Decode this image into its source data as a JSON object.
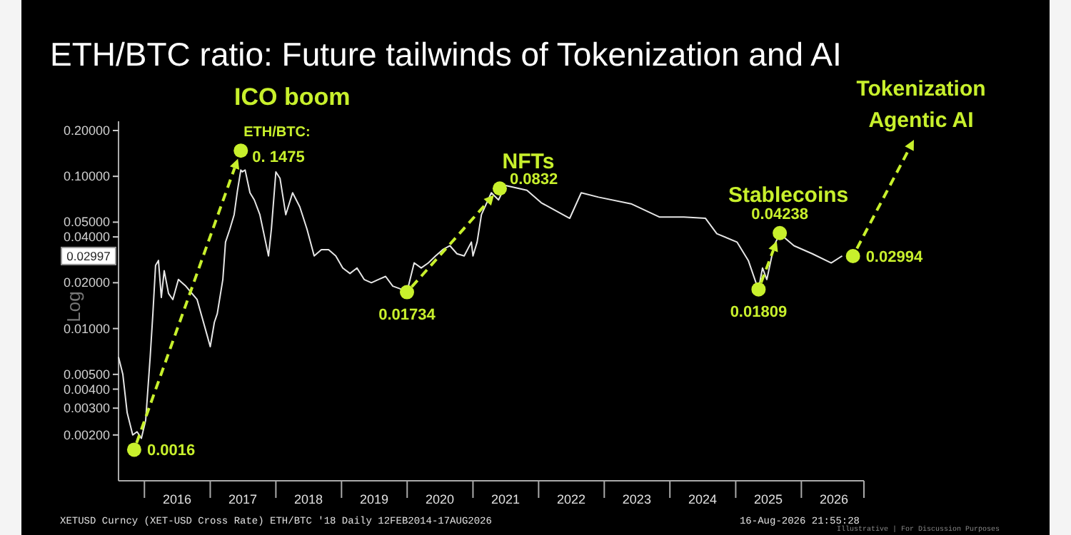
{
  "chart_data": {
    "type": "line",
    "title": "ETH/BTC ratio: Future tailwinds of Tokenization and AI",
    "ylabel": "Log",
    "log": true,
    "xlim": [
      "2015-08-10",
      "2026-12-15"
    ],
    "xticks": [
      {
        "value": "2016-01-01",
        "label": null
      },
      {
        "value": "2016-07-01",
        "label": "2016"
      },
      {
        "value": "2017-01-01",
        "label": null
      },
      {
        "value": "2017-07-01",
        "label": "2017"
      },
      {
        "value": "2018-01-01",
        "label": null
      },
      {
        "value": "2018-07-01",
        "label": "2018"
      },
      {
        "value": "2019-01-01",
        "label": null
      },
      {
        "value": "2019-07-01",
        "label": "2019"
      },
      {
        "value": "2020-01-01",
        "label": null
      },
      {
        "value": "2020-07-01",
        "label": "2020"
      },
      {
        "value": "2021-01-01",
        "label": null
      },
      {
        "value": "2021-07-01",
        "label": "2021"
      },
      {
        "value": "2022-01-01",
        "label": null
      },
      {
        "value": "2022-07-01",
        "label": "2022"
      },
      {
        "value": "2023-01-01",
        "label": null
      },
      {
        "value": "2023-07-01",
        "label": "2023"
      },
      {
        "value": "2024-01-01",
        "label": null
      },
      {
        "value": "2024-07-01",
        "label": "2024"
      },
      {
        "value": "2025-01-01",
        "label": null
      },
      {
        "value": "2025-07-01",
        "label": "2025"
      },
      {
        "value": "2026-01-01",
        "label": null
      },
      {
        "value": "2026-07-01",
        "label": "2026"
      },
      {
        "value": "2026-12-15",
        "label": null
      }
    ],
    "ylim": [
      0.001,
      0.23
    ],
    "yticks": [
      {
        "value": 0.2,
        "label": "0.20000"
      },
      {
        "value": 0.1,
        "label": "0.10000"
      },
      {
        "value": 0.05,
        "label": "0.05000"
      },
      {
        "value": 0.04,
        "label": "0.04000"
      },
      {
        "value": 0.02,
        "label": "0.02000"
      },
      {
        "value": 0.01,
        "label": "0.01000"
      },
      {
        "value": 0.005,
        "label": "0.00500"
      },
      {
        "value": 0.004,
        "label": "0.00400"
      },
      {
        "value": 0.003,
        "label": "0.00300"
      },
      {
        "value": 0.002,
        "label": "0.00200"
      }
    ],
    "grid": false,
    "series": [
      {
        "color": "#e6e6e6",
        "x": [
          "2015-08-10",
          "2015-09-03",
          "2015-09-27",
          "2015-10-28",
          "2015-11-21",
          "2015-12-15",
          "2016-01-08",
          "2016-02-02",
          "2016-02-17",
          "2016-03-03",
          "2016-03-19",
          "2016-04-04",
          "2016-04-20",
          "2016-05-14",
          "2016-06-07",
          "2016-07-08",
          "2016-08-18",
          "2016-10-20",
          "2016-12-15",
          "2017-01-01",
          "2017-01-24",
          "2017-02-09",
          "2017-03-12",
          "2017-03-27",
          "2017-04-20",
          "2017-05-14",
          "2017-06-01",
          "2017-06-20",
          "2017-06-28",
          "2017-07-14",
          "2017-08-10",
          "2017-09-03",
          "2017-10-04",
          "2017-11-05",
          "2017-11-21",
          "2017-12-07",
          "2018-01-01",
          "2018-01-24",
          "2018-02-25",
          "2018-04-04",
          "2018-05-14",
          "2018-06-23",
          "2018-08-02",
          "2018-09-11",
          "2018-10-21",
          "2018-11-30",
          "2019-01-08",
          "2019-02-17",
          "2019-03-28",
          "2019-05-07",
          "2019-06-16",
          "2019-07-25",
          "2019-09-03",
          "2019-10-13",
          "2019-12-07",
          "2020-01-08",
          "2020-02-09",
          "2020-03-19",
          "2020-04-28",
          "2020-06-07",
          "2020-07-17",
          "2020-08-26",
          "2020-10-04",
          "2020-11-13",
          "2020-12-23",
          "2021-01-01",
          "2021-01-24",
          "2021-02-17",
          "2021-04-13",
          "2021-05-23",
          "2021-07-01",
          "2021-10-28",
          "2022-01-16",
          "2022-06-23",
          "2022-08-26",
          "2022-11-30",
          "2023-05-30",
          "2023-11-05",
          "2024-03-19",
          "2024-07-17",
          "2024-09-18",
          "2025-01-08",
          "2025-03-12",
          "2025-05-07",
          "2025-05-30",
          "2025-06-23",
          "2025-08-02",
          "2025-09-03",
          "2025-11-21",
          "2026-03-03",
          "2026-06-16",
          "2026-08-16"
        ],
        "values": [
          0.0065,
          0.005,
          0.0028,
          0.002,
          0.0021,
          0.0019,
          0.0025,
          0.0065,
          0.0125,
          0.026,
          0.028,
          0.016,
          0.024,
          0.017,
          0.0155,
          0.021,
          0.019,
          0.0155,
          0.009,
          0.0076,
          0.011,
          0.0125,
          0.021,
          0.037,
          0.045,
          0.056,
          0.08,
          0.11,
          0.107,
          0.11,
          0.078,
          0.07,
          0.056,
          0.037,
          0.03,
          0.045,
          0.107,
          0.097,
          0.056,
          0.078,
          0.063,
          0.045,
          0.03,
          0.033,
          0.033,
          0.03,
          0.025,
          0.023,
          0.025,
          0.021,
          0.02,
          0.021,
          0.022,
          0.019,
          0.018,
          0.019,
          0.027,
          0.025,
          0.027,
          0.03,
          0.033,
          0.035,
          0.031,
          0.03,
          0.037,
          0.03,
          0.037,
          0.056,
          0.078,
          0.07,
          0.087,
          0.081,
          0.067,
          0.053,
          0.078,
          0.073,
          0.066,
          0.054,
          0.054,
          0.053,
          0.042,
          0.037,
          0.028,
          0.018,
          0.025,
          0.021,
          0.035,
          0.042,
          0.035,
          0.031,
          0.027,
          0.03
        ]
      },
      {
        "type": "scatter",
        "color": "#c8f02c",
        "x": [
          "2015-11-05",
          "2017-06-20",
          "2019-12-31",
          "2021-05-30",
          "2025-05-08",
          "2025-09-03",
          "2026-10-15"
        ],
        "values": [
          0.0016,
          0.1475,
          0.01734,
          0.0832,
          0.01809,
          0.04238,
          0.02994
        ],
        "value_labels": [
          "0.0016",
          "0. 1475",
          "0.01734",
          "0.0832",
          "0.01809",
          "0.04238",
          "0.02994"
        ]
      }
    ],
    "annotations": [
      {
        "text": "ICO boom",
        "x": "2017-06-20",
        "y": 0.1475
      },
      {
        "text": "ETH/BTC:",
        "x": "2017-06-20",
        "y": 0.1475
      },
      {
        "text": "NFTs",
        "x": "2021-05-30",
        "y": 0.0832
      },
      {
        "text": "Stablecoins",
        "x": "2025-09-03",
        "y": 0.04238
      },
      "Tokenization",
      "Agentic AI",
      {
        "text": "0.02997",
        "y": 0.02997
      },
      "XETUSD Curncy (XET-USD Cross Rate) ETH/BTC '18 Daily 12FEB2014-17AUG2026",
      "16-Aug-2026 21:55:28",
      "Illustrative  |  For Discussion Purposes"
    ]
  }
}
